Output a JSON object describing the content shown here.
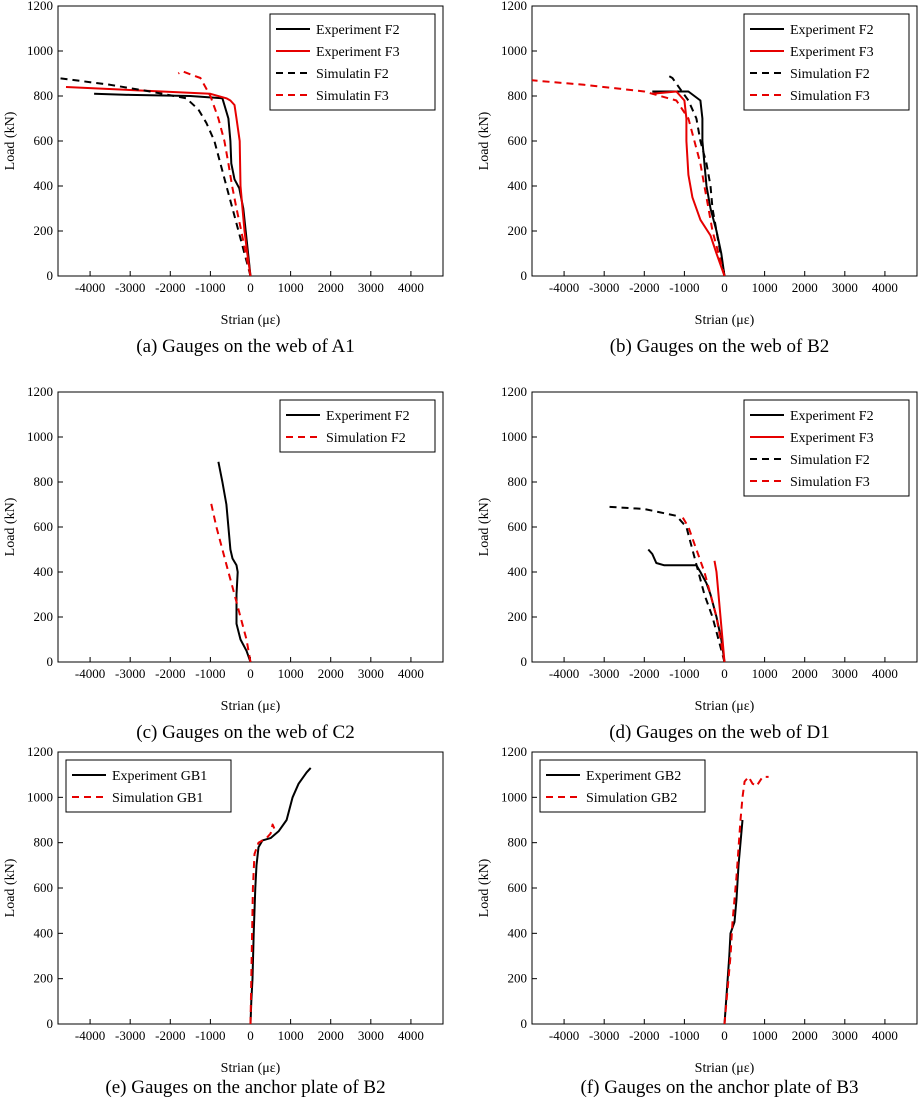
{
  "figure": {
    "colors": {
      "experiment": "#000000",
      "simulation_f2": "#000000",
      "red": "#e60000"
    }
  },
  "chart_data": [
    {
      "id": "a",
      "type": "line",
      "caption": "(a) Gauges on the web of A1",
      "xlabel": "Strian (με)",
      "ylabel": "Load (kN)",
      "xlim": [
        -4800,
        4800
      ],
      "ylim": [
        0,
        1200
      ],
      "xticks": [
        -4000,
        -3000,
        -2000,
        -1000,
        0,
        1000,
        2000,
        3000,
        4000
      ],
      "yticks": [
        0,
        200,
        400,
        600,
        800,
        1000,
        1200
      ],
      "legend_position": "top-right",
      "series": [
        {
          "name": "Experiment  F2",
          "color": "#000000",
          "dash": "solid",
          "points": [
            [
              0,
              0
            ],
            [
              -60,
              100
            ],
            [
              -120,
              200
            ],
            [
              -180,
              300
            ],
            [
              -280,
              390
            ],
            [
              -400,
              430
            ],
            [
              -480,
              500
            ],
            [
              -500,
              600
            ],
            [
              -550,
              700
            ],
            [
              -650,
              760
            ],
            [
              -700,
              790
            ],
            [
              -1500,
              800
            ],
            [
              -3000,
              805
            ],
            [
              -3900,
              810
            ]
          ]
        },
        {
          "name": "Experiment F3",
          "color": "#e60000",
          "dash": "solid",
          "points": [
            [
              0,
              0
            ],
            [
              -80,
              100
            ],
            [
              -150,
              200
            ],
            [
              -200,
              300
            ],
            [
              -250,
              400
            ],
            [
              -260,
              500
            ],
            [
              -270,
              600
            ],
            [
              -350,
              700
            ],
            [
              -400,
              760
            ],
            [
              -500,
              780
            ],
            [
              -600,
              790
            ],
            [
              -1000,
              810
            ],
            [
              -4600,
              840
            ]
          ]
        },
        {
          "name": "Simulatin F2",
          "color": "#000000",
          "dash": "dashed",
          "points": [
            [
              0,
              0
            ],
            [
              -150,
              100
            ],
            [
              -300,
              200
            ],
            [
              -450,
              300
            ],
            [
              -600,
              400
            ],
            [
              -750,
              500
            ],
            [
              -900,
              600
            ],
            [
              -1100,
              680
            ],
            [
              -1300,
              740
            ],
            [
              -1600,
              790
            ],
            [
              -2500,
              820
            ],
            [
              -3500,
              850
            ],
            [
              -4800,
              880
            ]
          ]
        },
        {
          "name": "Simulatin F3",
          "color": "#e60000",
          "dash": "dashed",
          "points": [
            [
              0,
              0
            ],
            [
              -120,
              100
            ],
            [
              -230,
              200
            ],
            [
              -350,
              300
            ],
            [
              -460,
              400
            ],
            [
              -550,
              500
            ],
            [
              -650,
              600
            ],
            [
              -800,
              700
            ],
            [
              -1000,
              800
            ],
            [
              -1250,
              880
            ],
            [
              -1700,
              910
            ],
            [
              -1800,
              900
            ]
          ]
        }
      ]
    },
    {
      "id": "b",
      "type": "line",
      "caption": "(b) Gauges on the web of B2",
      "xlabel": "Strian (με)",
      "ylabel": "Load (kN)",
      "xlim": [
        -4800,
        4800
      ],
      "ylim": [
        0,
        1200
      ],
      "xticks": [
        -4000,
        -3000,
        -2000,
        -1000,
        0,
        1000,
        2000,
        3000,
        4000
      ],
      "yticks": [
        0,
        200,
        400,
        600,
        800,
        1000,
        1200
      ],
      "legend_position": "top-right",
      "series": [
        {
          "name": "Experiment F2",
          "color": "#000000",
          "dash": "solid",
          "points": [
            [
              0,
              0
            ],
            [
              -80,
              100
            ],
            [
              -200,
              200
            ],
            [
              -350,
              300
            ],
            [
              -450,
              400
            ],
            [
              -500,
              500
            ],
            [
              -550,
              600
            ],
            [
              -550,
              700
            ],
            [
              -600,
              780
            ],
            [
              -900,
              820
            ],
            [
              -1800,
              820
            ]
          ]
        },
        {
          "name": "Experiment F3",
          "color": "#e60000",
          "dash": "solid",
          "points": [
            [
              0,
              0
            ],
            [
              -200,
              100
            ],
            [
              -350,
              180
            ],
            [
              -600,
              250
            ],
            [
              -800,
              350
            ],
            [
              -900,
              450
            ],
            [
              -950,
              600
            ],
            [
              -950,
              700
            ],
            [
              -1000,
              780
            ],
            [
              -1200,
              820
            ],
            [
              -1800,
              810
            ]
          ]
        },
        {
          "name": "Simulation F2",
          "color": "#000000",
          "dash": "dashed",
          "points": [
            [
              0,
              0
            ],
            [
              -100,
              100
            ],
            [
              -200,
              200
            ],
            [
              -300,
              300
            ],
            [
              -350,
              400
            ],
            [
              -450,
              500
            ],
            [
              -600,
              600
            ],
            [
              -700,
              700
            ],
            [
              -900,
              780
            ],
            [
              -1100,
              830
            ],
            [
              -1300,
              880
            ],
            [
              -1400,
              890
            ],
            [
              -1450,
              900
            ]
          ]
        },
        {
          "name": "Simulation F3",
          "color": "#e60000",
          "dash": "dashed",
          "points": [
            [
              0,
              0
            ],
            [
              -150,
              100
            ],
            [
              -300,
              200
            ],
            [
              -400,
              300
            ],
            [
              -500,
              400
            ],
            [
              -600,
              500
            ],
            [
              -750,
              600
            ],
            [
              -900,
              700
            ],
            [
              -1200,
              780
            ],
            [
              -2000,
              820
            ],
            [
              -3500,
              850
            ],
            [
              -4800,
              870
            ]
          ]
        }
      ]
    },
    {
      "id": "c",
      "type": "line",
      "caption": "(c) Gauges on the web of C2",
      "xlabel": "Strian (με)",
      "ylabel": "Load (kN)",
      "xlim": [
        -4800,
        4800
      ],
      "ylim": [
        0,
        1200
      ],
      "xticks": [
        -4000,
        -3000,
        -2000,
        -1000,
        0,
        1000,
        2000,
        3000,
        4000
      ],
      "yticks": [
        0,
        200,
        400,
        600,
        800,
        1000,
        1200
      ],
      "legend_position": "top-right",
      "series": [
        {
          "name": "Experiment F2",
          "color": "#000000",
          "dash": "solid",
          "points": [
            [
              0,
              0
            ],
            [
              -100,
              50
            ],
            [
              -250,
              100
            ],
            [
              -350,
              170
            ],
            [
              -350,
              300
            ],
            [
              -320,
              400
            ],
            [
              -350,
              430
            ],
            [
              -450,
              460
            ],
            [
              -500,
              500
            ],
            [
              -550,
              600
            ],
            [
              -600,
              700
            ],
            [
              -700,
              800
            ],
            [
              -800,
              890
            ]
          ]
        },
        {
          "name": "Simulation F2",
          "color": "#e60000",
          "dash": "dashed",
          "points": [
            [
              0,
              0
            ],
            [
              -100,
              100
            ],
            [
              -250,
              200
            ],
            [
              -400,
              300
            ],
            [
              -550,
              400
            ],
            [
              -700,
              500
            ],
            [
              -850,
              600
            ],
            [
              -1000,
              720
            ]
          ]
        }
      ]
    },
    {
      "id": "d",
      "type": "line",
      "caption": "(d) Gauges on the web of D1",
      "xlabel": "Strian (με)",
      "ylabel": "Load (kN)",
      "xlim": [
        -4800,
        4800
      ],
      "ylim": [
        0,
        1200
      ],
      "xticks": [
        -4000,
        -3000,
        -2000,
        -1000,
        0,
        1000,
        2000,
        3000,
        4000
      ],
      "yticks": [
        0,
        200,
        400,
        600,
        800,
        1000,
        1200
      ],
      "legend_position": "top-right",
      "series": [
        {
          "name": "Experiment F2",
          "color": "#000000",
          "dash": "solid",
          "points": [
            [
              0,
              0
            ],
            [
              -80,
              100
            ],
            [
              -200,
              200
            ],
            [
              -350,
              300
            ],
            [
              -450,
              350
            ],
            [
              -600,
              400
            ],
            [
              -700,
              430
            ],
            [
              -1500,
              430
            ],
            [
              -1700,
              440
            ],
            [
              -1800,
              480
            ],
            [
              -1900,
              500
            ]
          ]
        },
        {
          "name": "Experiment F3",
          "color": "#e60000",
          "dash": "solid",
          "points": [
            [
              0,
              0
            ],
            [
              -50,
              100
            ],
            [
              -100,
              200
            ],
            [
              -150,
              300
            ],
            [
              -200,
              400
            ],
            [
              -250,
              450
            ]
          ]
        },
        {
          "name": "Simulation F2",
          "color": "#000000",
          "dash": "dashed",
          "points": [
            [
              0,
              0
            ],
            [
              -150,
              100
            ],
            [
              -300,
              200
            ],
            [
              -500,
              300
            ],
            [
              -650,
              400
            ],
            [
              -800,
              500
            ],
            [
              -950,
              600
            ],
            [
              -1200,
              650
            ],
            [
              -2000,
              680
            ],
            [
              -2900,
              690
            ]
          ]
        },
        {
          "name": "Simulation F3",
          "color": "#e60000",
          "dash": "dashed",
          "points": [
            [
              0,
              0
            ],
            [
              -100,
              100
            ],
            [
              -200,
              200
            ],
            [
              -350,
              300
            ],
            [
              -500,
              400
            ],
            [
              -700,
              500
            ],
            [
              -900,
              600
            ],
            [
              -1100,
              660
            ]
          ]
        }
      ]
    },
    {
      "id": "e",
      "type": "line",
      "caption": "(e) Gauges on the anchor plate of B2",
      "xlabel": "Strian (με)",
      "ylabel": "Load (kN)",
      "xlim": [
        -4800,
        4800
      ],
      "ylim": [
        0,
        1200
      ],
      "xticks": [
        -4000,
        -3000,
        -2000,
        -1000,
        0,
        1000,
        2000,
        3000,
        4000
      ],
      "yticks": [
        0,
        200,
        400,
        600,
        800,
        1000,
        1200
      ],
      "legend_position": "top-left",
      "series": [
        {
          "name": "Experiment GB1",
          "color": "#000000",
          "dash": "solid",
          "points": [
            [
              0,
              0
            ],
            [
              20,
              100
            ],
            [
              50,
              200
            ],
            [
              80,
              400
            ],
            [
              120,
              600
            ],
            [
              150,
              700
            ],
            [
              200,
              780
            ],
            [
              300,
              810
            ],
            [
              500,
              820
            ],
            [
              700,
              850
            ],
            [
              900,
              900
            ],
            [
              1050,
              1000
            ],
            [
              1200,
              1060
            ],
            [
              1400,
              1110
            ],
            [
              1500,
              1130
            ]
          ]
        },
        {
          "name": "Simulation GB1",
          "color": "#e60000",
          "dash": "dashed",
          "points": [
            [
              0,
              0
            ],
            [
              20,
              200
            ],
            [
              40,
              400
            ],
            [
              60,
              600
            ],
            [
              100,
              750
            ],
            [
              200,
              800
            ],
            [
              400,
              820
            ],
            [
              500,
              840
            ],
            [
              550,
              880
            ],
            [
              600,
              860
            ]
          ]
        }
      ]
    },
    {
      "id": "f",
      "type": "line",
      "caption": "(f) Gauges on the anchor plate of B3",
      "xlabel": "Strian (με)",
      "ylabel": "Load (kN)",
      "xlim": [
        -4800,
        4800
      ],
      "ylim": [
        0,
        1200
      ],
      "xticks": [
        -4000,
        -3000,
        -2000,
        -1000,
        0,
        1000,
        2000,
        3000,
        4000
      ],
      "yticks": [
        0,
        200,
        400,
        600,
        800,
        1000,
        1200
      ],
      "legend_position": "top-left",
      "series": [
        {
          "name": "Experiment GB2",
          "color": "#000000",
          "dash": "solid",
          "points": [
            [
              0,
              0
            ],
            [
              40,
              100
            ],
            [
              80,
              200
            ],
            [
              120,
              300
            ],
            [
              150,
              400
            ],
            [
              250,
              450
            ],
            [
              300,
              550
            ],
            [
              350,
              700
            ],
            [
              400,
              800
            ],
            [
              450,
              900
            ]
          ]
        },
        {
          "name": "Simulation GB2",
          "color": "#e60000",
          "dash": "dashed",
          "points": [
            [
              0,
              0
            ],
            [
              50,
              100
            ],
            [
              100,
              200
            ],
            [
              150,
              300
            ],
            [
              200,
              450
            ],
            [
              300,
              650
            ],
            [
              400,
              900
            ],
            [
              450,
              1000
            ],
            [
              500,
              1070
            ],
            [
              600,
              1090
            ],
            [
              700,
              1060
            ],
            [
              800,
              1050
            ],
            [
              950,
              1090
            ],
            [
              1100,
              1090
            ]
          ]
        }
      ]
    }
  ]
}
